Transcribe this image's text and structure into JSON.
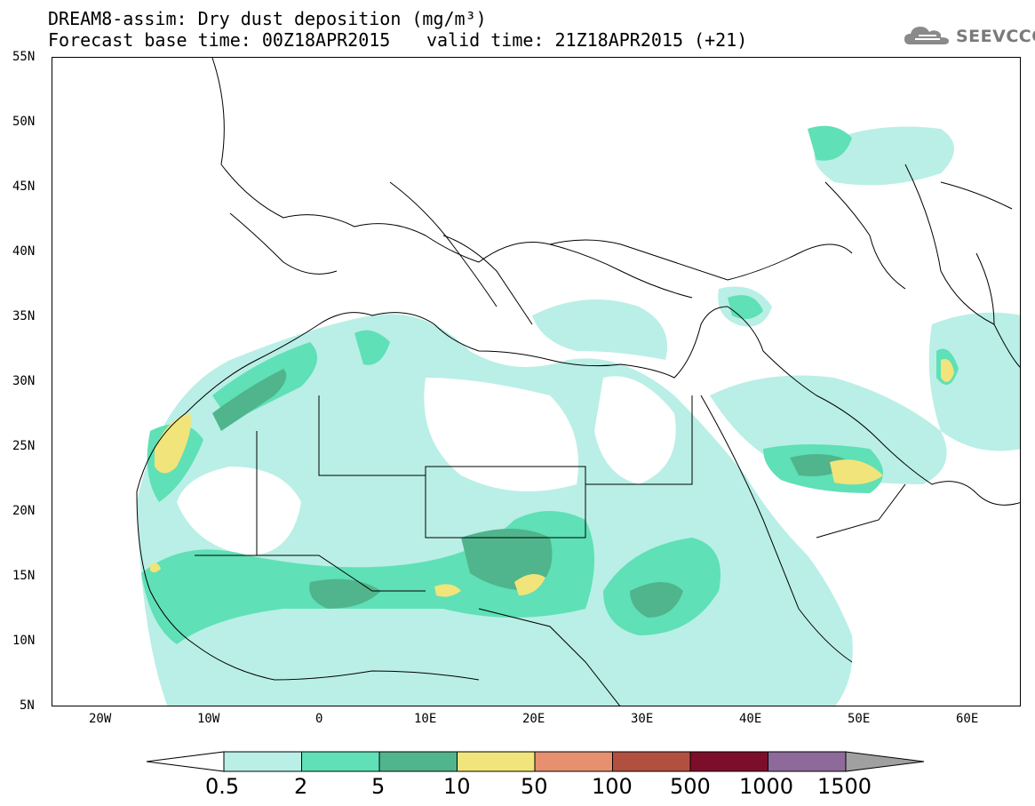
{
  "title_line1": "DREAM8-assim: Dry dust deposition (mg/m³)",
  "title_line2": "Forecast base time: 00Z18APR2015",
  "valid_time": "valid time: 21Z18APR2015 (+21)",
  "logo_text": "SEEVCCC",
  "lat_labels": [
    "55N",
    "50N",
    "45N",
    "40N",
    "35N",
    "30N",
    "25N",
    "20N",
    "15N",
    "10N",
    "5N"
  ],
  "lon_labels": [
    "20W",
    "10W",
    "0",
    "10E",
    "20E",
    "30E",
    "40E",
    "50E",
    "60E"
  ],
  "colorbar": {
    "labels": [
      "0.5",
      "2",
      "5",
      "10",
      "50",
      "100",
      "500",
      "1000",
      "1500"
    ],
    "colors": [
      "#b9efe6",
      "#5fe0b6",
      "#50b58c",
      "#f1e47a",
      "#e69070",
      "#b25040",
      "#7d0e2a",
      "#8e6a9a",
      "#a0a0a0"
    ]
  }
}
